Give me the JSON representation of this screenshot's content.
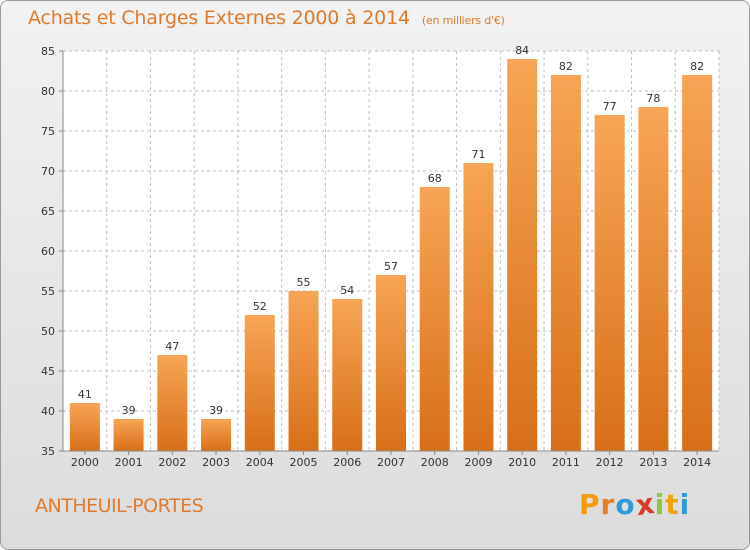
{
  "title": "Achats et Charges Externes 2000 à 2014",
  "unit": "(en milliers d'€)",
  "commune": "ANTHEUIL-PORTES",
  "logo": {
    "letters": [
      "P",
      "r",
      "o",
      "x",
      "i",
      "t",
      "i"
    ],
    "colors": [
      "#f39c12",
      "#e67e22",
      "#2e9bd6",
      "#d83a2b",
      "#8dc63f",
      "#f0a30a",
      "#2e9bd6"
    ]
  },
  "colors": {
    "bar_light": "#f7a556",
    "bar_dark": "#d86f18",
    "title": "#e07a2e",
    "grid": "#bfbfbf",
    "text": "#333333"
  },
  "chart_data": {
    "type": "bar",
    "categories": [
      "2000",
      "2001",
      "2002",
      "2003",
      "2004",
      "2005",
      "2006",
      "2007",
      "2008",
      "2009",
      "2010",
      "2011",
      "2012",
      "2013",
      "2014"
    ],
    "values": [
      41,
      39,
      47,
      39,
      52,
      55,
      54,
      57,
      68,
      71,
      84,
      82,
      77,
      78,
      82
    ],
    "ylim": [
      35,
      85
    ],
    "yticks": [
      35,
      40,
      45,
      50,
      55,
      60,
      65,
      70,
      75,
      80,
      85
    ],
    "grid": true,
    "title": "Achats et Charges Externes 2000 à 2014",
    "xlabel": "",
    "ylabel": ""
  }
}
